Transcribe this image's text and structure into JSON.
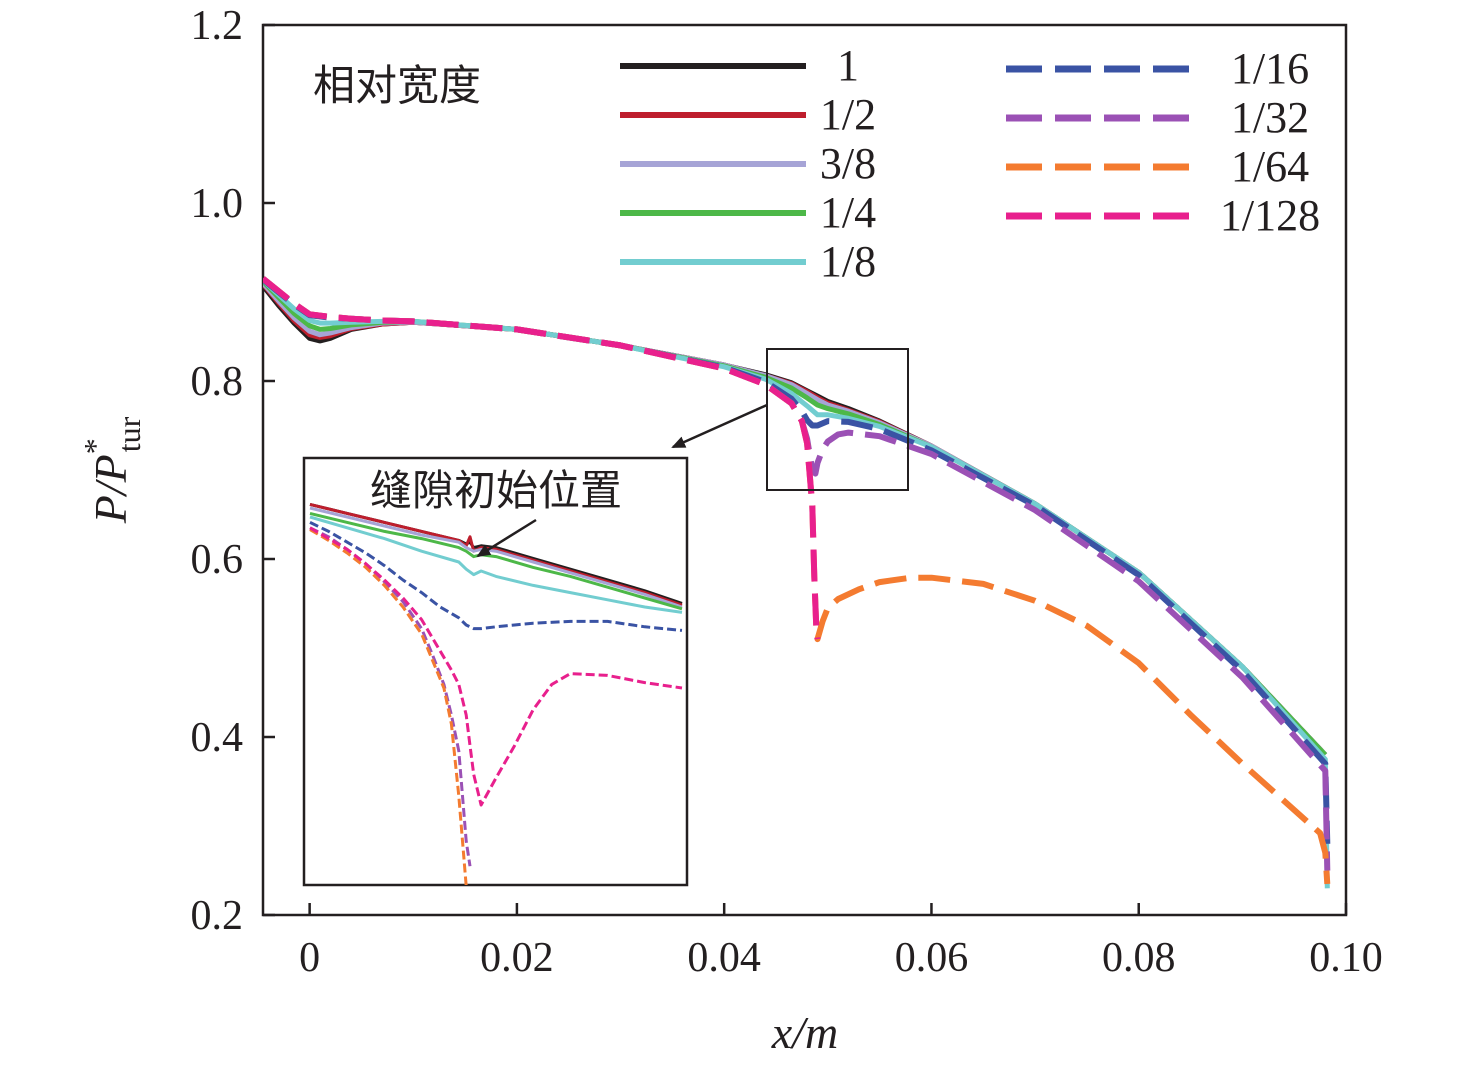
{
  "chart_data": {
    "type": "line",
    "xlabel": "x/m",
    "ylabel": {
      "main": "P/P",
      "superscript": "*",
      "subscript": "tur"
    },
    "xlim": [
      -0.0045,
      0.1
    ],
    "ylim": [
      0.2,
      1.2
    ],
    "xticks": [
      0,
      0.02,
      0.04,
      0.06,
      0.08,
      0.1
    ],
    "xtick_labels": [
      "0",
      "0.02",
      "0.04",
      "0.06",
      "0.08",
      "0.10"
    ],
    "yticks": [
      0.2,
      0.4,
      0.6,
      0.8,
      1.0,
      1.2
    ],
    "ytick_labels": [
      "0.2",
      "0.4",
      "0.6",
      "0.8",
      "1.0",
      "1.2"
    ],
    "legend_title": "相对宽度",
    "inset_annotation": "缝隙初始位置",
    "series": [
      {
        "name": "1",
        "color": "#231f20",
        "dashed": false,
        "x": [
          -0.0045,
          -0.003,
          -0.0015,
          0,
          0.001,
          0.002,
          0.004,
          0.007,
          0.01,
          0.02,
          0.03,
          0.04,
          0.044,
          0.0465,
          0.048,
          0.049,
          0.05,
          0.052,
          0.055,
          0.06,
          0.07,
          0.08,
          0.09,
          0.098
        ],
        "y": [
          0.907,
          0.885,
          0.865,
          0.848,
          0.845,
          0.848,
          0.858,
          0.864,
          0.866,
          0.858,
          0.84,
          0.818,
          0.807,
          0.798,
          0.789,
          0.783,
          0.777,
          0.769,
          0.755,
          0.727,
          0.662,
          0.585,
          0.479,
          0.38
        ]
      },
      {
        "name": "1/2",
        "color": "#be1e2d",
        "dashed": false,
        "x": [
          -0.0045,
          -0.003,
          -0.0015,
          0,
          0.001,
          0.002,
          0.004,
          0.007,
          0.01,
          0.02,
          0.03,
          0.04,
          0.044,
          0.0465,
          0.048,
          0.049,
          0.05,
          0.052,
          0.055,
          0.06,
          0.07,
          0.08,
          0.09,
          0.098
        ],
        "y": [
          0.909,
          0.888,
          0.868,
          0.852,
          0.849,
          0.851,
          0.859,
          0.864,
          0.866,
          0.858,
          0.84,
          0.818,
          0.806,
          0.797,
          0.788,
          0.781,
          0.775,
          0.767,
          0.754,
          0.727,
          0.662,
          0.585,
          0.479,
          0.38
        ]
      },
      {
        "name": "3/8",
        "color": "#a6a4d6",
        "dashed": false,
        "x": [
          -0.0045,
          -0.003,
          -0.0015,
          0,
          0.001,
          0.002,
          0.004,
          0.007,
          0.01,
          0.02,
          0.03,
          0.04,
          0.044,
          0.0465,
          0.048,
          0.049,
          0.05,
          0.052,
          0.055,
          0.06,
          0.07,
          0.08,
          0.09,
          0.098
        ],
        "y": [
          0.91,
          0.89,
          0.871,
          0.856,
          0.852,
          0.854,
          0.86,
          0.865,
          0.866,
          0.858,
          0.84,
          0.818,
          0.806,
          0.796,
          0.786,
          0.779,
          0.773,
          0.766,
          0.753,
          0.727,
          0.662,
          0.585,
          0.479,
          0.38
        ]
      },
      {
        "name": "1/4",
        "color": "#4db848",
        "dashed": false,
        "x": [
          -0.0045,
          -0.003,
          -0.0015,
          0,
          0.001,
          0.002,
          0.004,
          0.007,
          0.01,
          0.02,
          0.03,
          0.04,
          0.044,
          0.0465,
          0.048,
          0.049,
          0.05,
          0.052,
          0.055,
          0.06,
          0.07,
          0.08,
          0.09,
          0.098
        ],
        "y": [
          0.912,
          0.894,
          0.876,
          0.862,
          0.858,
          0.859,
          0.863,
          0.866,
          0.867,
          0.858,
          0.84,
          0.817,
          0.804,
          0.792,
          0.781,
          0.773,
          0.769,
          0.763,
          0.751,
          0.726,
          0.662,
          0.585,
          0.479,
          0.38
        ]
      },
      {
        "name": "1/8",
        "color": "#72cdd0",
        "dashed": false,
        "x": [
          -0.0045,
          -0.003,
          -0.0015,
          0,
          0.001,
          0.002,
          0.004,
          0.007,
          0.01,
          0.02,
          0.03,
          0.04,
          0.044,
          0.0465,
          0.048,
          0.049,
          0.05,
          0.052,
          0.055,
          0.06,
          0.07,
          0.08,
          0.09,
          0.098,
          0.0982
        ],
        "y": [
          0.913,
          0.897,
          0.881,
          0.868,
          0.865,
          0.865,
          0.866,
          0.867,
          0.867,
          0.858,
          0.84,
          0.816,
          0.802,
          0.786,
          0.772,
          0.762,
          0.762,
          0.758,
          0.749,
          0.726,
          0.662,
          0.585,
          0.479,
          0.375,
          0.23
        ]
      },
      {
        "name": "1/16",
        "color": "#3a53a4",
        "dashed": true,
        "x": [
          -0.0045,
          -0.003,
          -0.0015,
          0,
          0.002,
          0.004,
          0.007,
          0.01,
          0.02,
          0.03,
          0.04,
          0.044,
          0.0465,
          0.0475,
          0.048,
          0.0485,
          0.049,
          0.05,
          0.052,
          0.055,
          0.06,
          0.07,
          0.08,
          0.09,
          0.098,
          0.0982
        ],
        "y": [
          0.914,
          0.9,
          0.886,
          0.874,
          0.871,
          0.87,
          0.868,
          0.867,
          0.858,
          0.84,
          0.815,
          0.799,
          0.78,
          0.766,
          0.756,
          0.75,
          0.75,
          0.755,
          0.754,
          0.746,
          0.722,
          0.66,
          0.582,
          0.474,
          0.37,
          0.28
        ]
      },
      {
        "name": "1/32",
        "color": "#9b51b5",
        "dashed": true,
        "x": [
          -0.0045,
          -0.003,
          -0.0015,
          0,
          0.002,
          0.004,
          0.007,
          0.01,
          0.02,
          0.03,
          0.04,
          0.044,
          0.0465,
          0.0475,
          0.048,
          0.0485,
          0.0488,
          0.049,
          0.0495,
          0.05,
          0.051,
          0.052,
          0.055,
          0.06,
          0.07,
          0.08,
          0.09,
          0.098,
          0.0982
        ],
        "y": [
          0.915,
          0.901,
          0.887,
          0.875,
          0.872,
          0.87,
          0.868,
          0.867,
          0.858,
          0.84,
          0.814,
          0.796,
          0.775,
          0.755,
          0.735,
          0.7,
          0.696,
          0.708,
          0.723,
          0.732,
          0.74,
          0.742,
          0.738,
          0.718,
          0.655,
          0.575,
          0.467,
          0.362,
          0.25
        ]
      },
      {
        "name": "1/64",
        "color": "#f47b30",
        "dashed": true,
        "x": [
          -0.0045,
          -0.003,
          -0.0015,
          0,
          0.002,
          0.004,
          0.007,
          0.01,
          0.02,
          0.03,
          0.04,
          0.044,
          0.0465,
          0.0475,
          0.048,
          0.0485,
          0.0487,
          0.0489,
          0.049,
          0.0495,
          0.05,
          0.051,
          0.053,
          0.055,
          0.058,
          0.06,
          0.065,
          0.07,
          0.075,
          0.08,
          0.085,
          0.09,
          0.095,
          0.0975,
          0.098,
          0.0982
        ],
        "y": [
          0.915,
          0.901,
          0.887,
          0.875,
          0.872,
          0.87,
          0.868,
          0.867,
          0.858,
          0.84,
          0.814,
          0.796,
          0.775,
          0.755,
          0.73,
          0.66,
          0.58,
          0.52,
          0.51,
          0.53,
          0.545,
          0.555,
          0.566,
          0.574,
          0.579,
          0.579,
          0.572,
          0.553,
          0.525,
          0.483,
          0.425,
          0.37,
          0.318,
          0.292,
          0.27,
          0.235
        ]
      },
      {
        "name": "1/128",
        "color": "#e8208d",
        "dashed": true,
        "x": [
          -0.0045,
          -0.003,
          -0.0015,
          0,
          0.002,
          0.004,
          0.007,
          0.01,
          0.02,
          0.03,
          0.04,
          0.044,
          0.0465,
          0.0475,
          0.048,
          0.0485,
          0.0487,
          0.0489,
          0.049
        ],
        "y": [
          0.915,
          0.901,
          0.887,
          0.875,
          0.872,
          0.87,
          0.868,
          0.867,
          0.858,
          0.84,
          0.814,
          0.796,
          0.775,
          0.755,
          0.73,
          0.66,
          0.58,
          0.52,
          0.51
        ]
      }
    ],
    "legend": {
      "left_column": [
        "1",
        "1/2",
        "3/8",
        "1/4",
        "1/8"
      ],
      "right_column": [
        "1/16",
        "1/32",
        "1/64",
        "1/128"
      ]
    },
    "inset": {
      "source_region": {
        "x": [
          0.0443,
          0.0578
        ],
        "y": [
          0.677,
          0.837
        ]
      },
      "gap_marker": "缝隙初始位置",
      "series": [
        {
          "name": "1",
          "color": "#231f20",
          "dashed": false,
          "x": [
            0,
            0.1,
            0.2,
            0.3,
            0.4,
            0.42,
            0.43,
            0.44,
            0.46,
            0.5,
            0.6,
            0.7,
            0.8,
            0.9,
            1.0
          ],
          "y": [
            0.92,
            0.87,
            0.82,
            0.77,
            0.72,
            0.7,
            0.71,
            0.68,
            0.69,
            0.68,
            0.62,
            0.56,
            0.5,
            0.44,
            0.37
          ]
        },
        {
          "name": "1/2",
          "color": "#be1e2d",
          "dashed": false,
          "x": [
            0,
            0.1,
            0.2,
            0.3,
            0.4,
            0.42,
            0.43,
            0.44,
            0.46,
            0.5,
            0.6,
            0.7,
            0.8,
            0.9,
            1.0
          ],
          "y": [
            0.92,
            0.87,
            0.82,
            0.77,
            0.72,
            0.69,
            0.74,
            0.66,
            0.68,
            0.67,
            0.61,
            0.55,
            0.49,
            0.43,
            0.36
          ]
        },
        {
          "name": "3/8",
          "color": "#a6a4d6",
          "dashed": false,
          "x": [
            0,
            0.1,
            0.2,
            0.3,
            0.4,
            0.42,
            0.44,
            0.46,
            0.5,
            0.6,
            0.7,
            0.8,
            0.9,
            1.0
          ],
          "y": [
            0.9,
            0.85,
            0.8,
            0.75,
            0.71,
            0.68,
            0.66,
            0.67,
            0.66,
            0.6,
            0.54,
            0.48,
            0.42,
            0.35
          ]
        },
        {
          "name": "1/4",
          "color": "#4db848",
          "dashed": false,
          "x": [
            0,
            0.1,
            0.2,
            0.3,
            0.4,
            0.42,
            0.44,
            0.46,
            0.5,
            0.6,
            0.7,
            0.8,
            0.9,
            1.0
          ],
          "y": [
            0.87,
            0.82,
            0.77,
            0.73,
            0.68,
            0.66,
            0.63,
            0.64,
            0.63,
            0.57,
            0.52,
            0.46,
            0.4,
            0.34
          ]
        },
        {
          "name": "1/8",
          "color": "#72cdd0",
          "dashed": false,
          "x": [
            0,
            0.1,
            0.2,
            0.3,
            0.4,
            0.42,
            0.44,
            0.46,
            0.5,
            0.6,
            0.7,
            0.8,
            0.9,
            1.0
          ],
          "y": [
            0.85,
            0.79,
            0.73,
            0.66,
            0.6,
            0.56,
            0.53,
            0.55,
            0.52,
            0.47,
            0.43,
            0.39,
            0.35,
            0.32
          ]
        },
        {
          "name": "1/16",
          "color": "#3a53a4",
          "dashed": true,
          "x": [
            0,
            0.05,
            0.1,
            0.15,
            0.2,
            0.25,
            0.3,
            0.35,
            0.4,
            0.42,
            0.44,
            0.46,
            0.5,
            0.55,
            0.6,
            0.7,
            0.8,
            0.9,
            1.0
          ],
          "y": [
            0.82,
            0.77,
            0.71,
            0.65,
            0.58,
            0.5,
            0.43,
            0.35,
            0.29,
            0.25,
            0.23,
            0.23,
            0.24,
            0.25,
            0.26,
            0.27,
            0.27,
            0.24,
            0.22
          ]
        },
        {
          "name": "1/32",
          "color": "#9b51b5",
          "dashed": true,
          "x": [
            0,
            0.05,
            0.1,
            0.15,
            0.2,
            0.25,
            0.3,
            0.33,
            0.36,
            0.38,
            0.4,
            0.41,
            0.42,
            0.43
          ],
          "y": [
            0.79,
            0.74,
            0.67,
            0.59,
            0.49,
            0.38,
            0.23,
            0.08,
            -0.08,
            -0.25,
            -0.45,
            -0.7,
            -0.95,
            -1.09
          ]
        },
        {
          "name": "1/64",
          "color": "#f47b30",
          "dashed": true,
          "x": [
            0,
            0.05,
            0.1,
            0.15,
            0.2,
            0.25,
            0.3,
            0.33,
            0.36,
            0.38,
            0.39,
            0.4,
            0.41,
            0.42
          ],
          "y": [
            0.78,
            0.72,
            0.65,
            0.57,
            0.47,
            0.35,
            0.2,
            0.05,
            -0.1,
            -0.3,
            -0.5,
            -0.7,
            -0.95,
            -1.2
          ]
        },
        {
          "name": "1/128",
          "color": "#e8208d",
          "dashed": true,
          "x": [
            0,
            0.05,
            0.1,
            0.15,
            0.2,
            0.25,
            0.3,
            0.34,
            0.38,
            0.4,
            0.42,
            0.43,
            0.44,
            0.46,
            0.5,
            0.55,
            0.6,
            0.65,
            0.7,
            0.8,
            0.9,
            1.0
          ],
          "y": [
            0.79,
            0.73,
            0.67,
            0.59,
            0.5,
            0.4,
            0.28,
            0.14,
            0.0,
            -0.08,
            -0.25,
            -0.42,
            -0.58,
            -0.75,
            -0.6,
            -0.42,
            -0.22,
            -0.08,
            -0.02,
            -0.03,
            -0.07,
            -0.1
          ]
        }
      ]
    }
  }
}
